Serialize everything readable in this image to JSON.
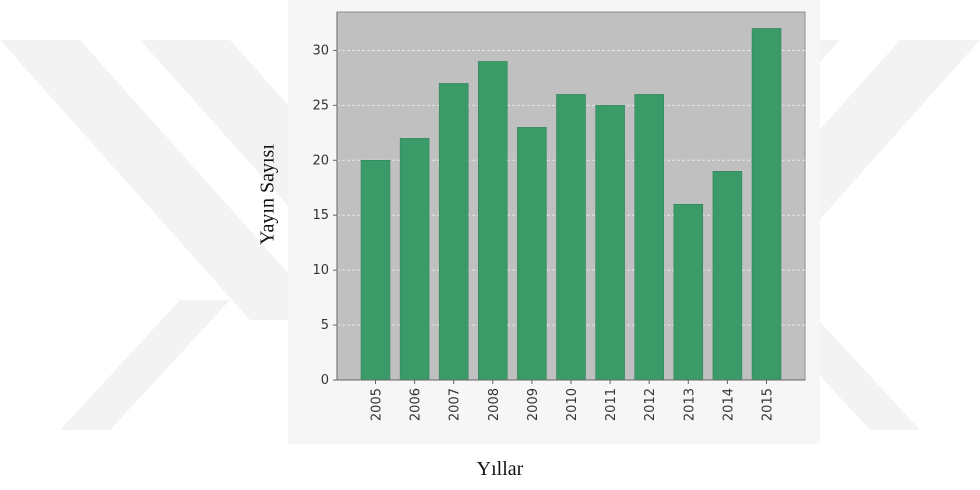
{
  "chart_data": {
    "type": "bar",
    "categories": [
      "2005",
      "2006",
      "2007",
      "2008",
      "2009",
      "2010",
      "2011",
      "2012",
      "2013",
      "2014",
      "2015"
    ],
    "values": [
      20,
      22,
      27,
      29,
      23,
      26,
      25,
      26,
      16,
      19,
      32
    ],
    "xlabel": "Yıllar",
    "ylabel": "Yayın Sayısı",
    "ylim": [
      0,
      33.5
    ],
    "yticks": [
      0,
      5,
      10,
      15,
      20,
      25,
      30
    ],
    "grid": true,
    "legend": "none",
    "colors": {
      "bar": "#3a9a68",
      "plot_background": "#c0c0c0",
      "panel_background": "#f6f6f6",
      "gridline": "#e6e6e6",
      "watermark": "#f3f3f3"
    }
  }
}
